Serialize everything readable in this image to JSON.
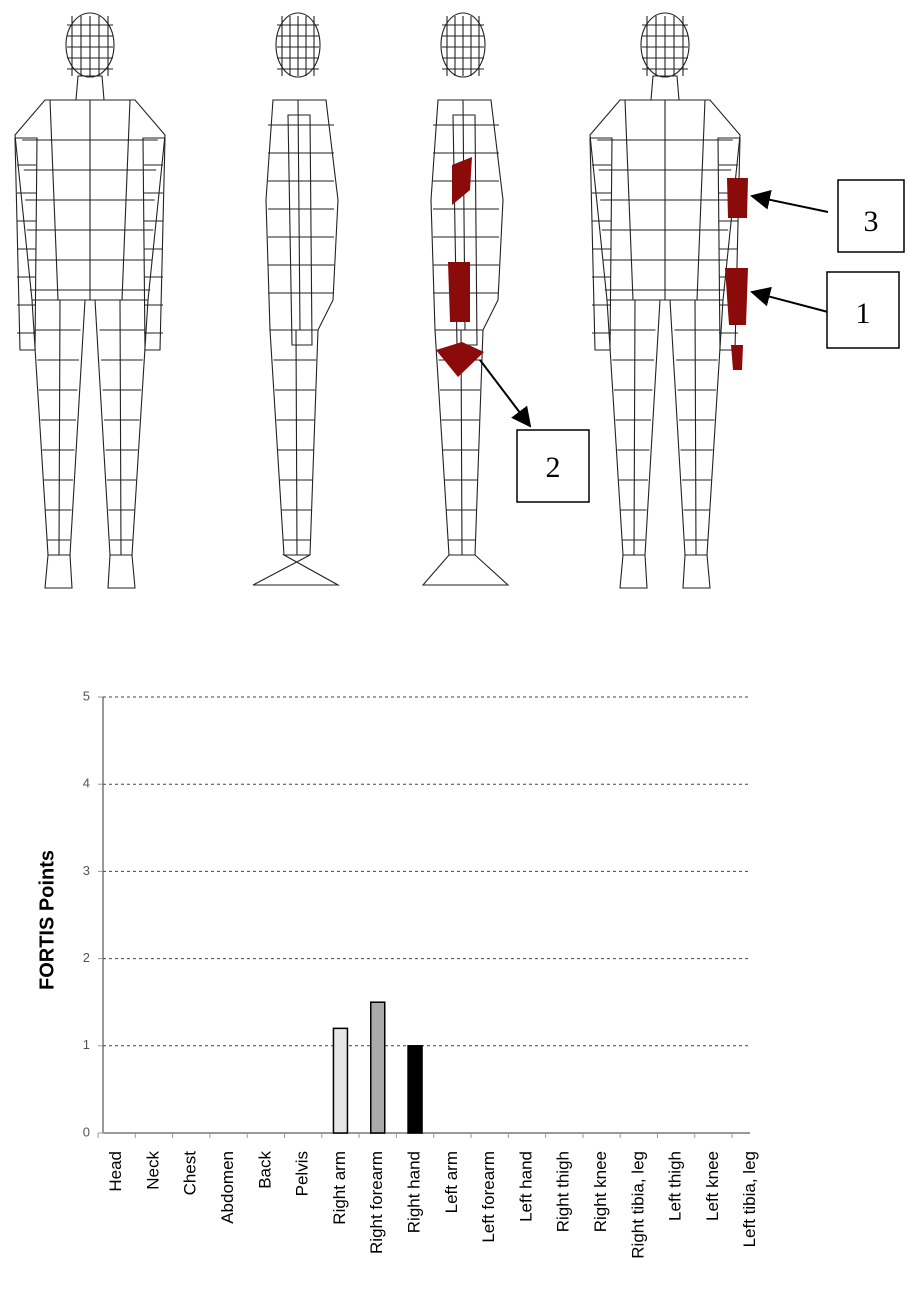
{
  "figure": {
    "callouts": [
      "1",
      "2",
      "3"
    ]
  },
  "chart_data": {
    "type": "bar",
    "ylabel": "FORTIS Points",
    "categories": [
      "Head",
      "Neck",
      "Chest",
      "Abdomen",
      "Back",
      "Pelvis",
      "Right arm",
      "Right forearm",
      "Right hand",
      "Left arm",
      "Left forearm",
      "Left hand",
      "Right thigh",
      "Right knee",
      "Right tibia, leg",
      "Left thigh",
      "Left knee",
      "Left tibia, leg"
    ],
    "values": [
      0,
      0,
      0,
      0,
      0,
      0,
      1.2,
      1.5,
      1,
      0,
      0,
      0,
      0,
      0,
      0,
      0,
      0,
      0
    ],
    "colors": [
      "#000000",
      "#000000",
      "#000000",
      "#000000",
      "#000000",
      "#000000",
      "#e6e6e6",
      "#aaaaaa",
      "#000000",
      "#000000",
      "#000000",
      "#000000",
      "#000000",
      "#000000",
      "#000000",
      "#000000",
      "#000000",
      "#000000"
    ],
    "ylim": [
      0,
      5
    ],
    "yticks": [
      0,
      1,
      2,
      3,
      4,
      5
    ],
    "grid": true
  }
}
